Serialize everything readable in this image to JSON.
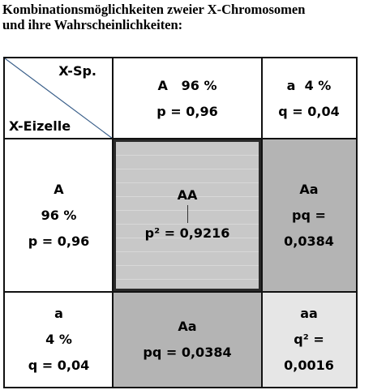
{
  "title_line1": "Kombinationsmöglichkeiten zweier X-Chromosomen",
  "title_line2": "und ihre Wahrscheinlichkeiten:",
  "corner": {
    "top": "X-Sp.",
    "bottom": "X-Eizelle"
  },
  "sperm_A": {
    "line1": "A   96 %",
    "line2": "p = 0,96"
  },
  "sperm_a": {
    "line1": "a  4 %",
    "line2": "q = 0,04"
  },
  "egg_A": {
    "line1": "A",
    "line2": "96 %",
    "line3": "p = 0,96"
  },
  "egg_a": {
    "line1": "a",
    "line2": "4 %",
    "line3": "q = 0,04"
  },
  "cell_AA": {
    "line1": "AA",
    "line2": "p² = 0,9216"
  },
  "cell_Aa_top": {
    "line1": "Aa",
    "line2": "pq =",
    "line3": "0,0384"
  },
  "cell_Aa_bottom": {
    "line1": "Aa",
    "line2": "pq = 0,0384"
  },
  "cell_aa": {
    "line1": "aa",
    "line2": "q² =",
    "line3": "0,0016"
  },
  "colors": {
    "dark_cell": "#b4b4b4",
    "light_cell": "#e6e6e6",
    "center_cell": "#c8c8c8",
    "diagonal": "#3a5f8a"
  }
}
